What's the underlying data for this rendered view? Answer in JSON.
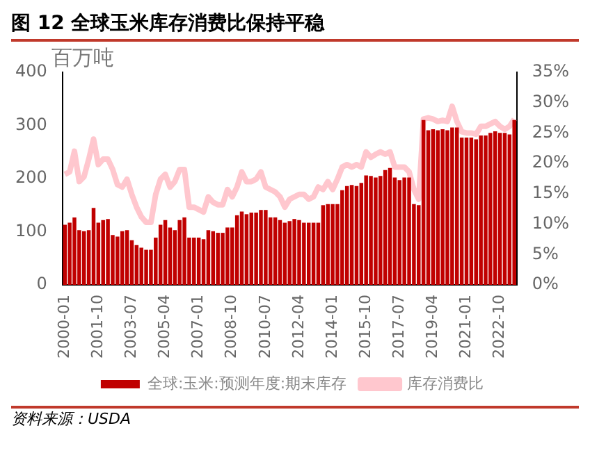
{
  "chart_data": {
    "type": "bar",
    "title": "图 12  全球玉米库存消费比保持平稳",
    "ylabel": "百万吨",
    "annotations": [
      "资料来源：USDA"
    ],
    "categories": [
      "2000-01",
      null,
      null,
      null,
      null,
      null,
      null,
      "2001-10",
      null,
      null,
      null,
      null,
      null,
      null,
      "2003-07",
      null,
      null,
      null,
      null,
      null,
      null,
      "2005-04",
      null,
      null,
      null,
      null,
      null,
      null,
      "2007-01",
      null,
      null,
      null,
      null,
      null,
      null,
      "2008-10",
      null,
      null,
      null,
      null,
      null,
      null,
      "2010-07",
      null,
      null,
      null,
      null,
      null,
      null,
      "2012-04",
      null,
      null,
      null,
      null,
      null,
      null,
      "2014-01",
      null,
      null,
      null,
      null,
      null,
      null,
      "2015-10",
      null,
      null,
      null,
      null,
      null,
      null,
      "2017-07",
      null,
      null,
      null,
      null,
      null,
      null,
      "2019-04",
      null,
      null,
      null,
      null,
      null,
      null,
      "2021-01",
      null,
      null,
      null,
      null,
      null,
      null,
      "2022-10",
      null,
      null,
      null
    ],
    "series": [
      {
        "name": "全球:玉米:预测年度:期末库存",
        "color": "#c00000",
        "values": [
          113,
          117,
          127,
          103,
          101,
          103,
          145,
          117,
          122,
          124,
          94,
          91,
          101,
          103,
          84,
          75,
          70,
          66,
          66,
          89,
          113,
          122,
          108,
          103,
          122,
          127,
          89,
          89,
          89,
          86,
          103,
          101,
          98,
          98,
          108,
          108,
          131,
          138,
          133,
          136,
          136,
          141,
          141,
          127,
          127,
          122,
          117,
          120,
          124,
          122,
          117,
          117,
          117,
          117,
          150,
          152,
          152,
          152,
          178,
          186,
          188,
          186,
          192,
          206,
          205,
          202,
          205,
          216,
          220,
          202,
          197,
          202,
          202,
          152,
          150,
          310,
          291,
          293,
          291,
          293,
          291,
          296,
          296,
          277,
          277,
          277,
          274,
          281,
          281,
          286,
          289,
          286,
          286,
          283,
          310
        ]
      },
      {
        "name": "库存消费比",
        "color": "#ffc7ce",
        "type": "line",
        "axis": "y2",
        "values": [
          18.2,
          18.6,
          22,
          17,
          17.8,
          20.7,
          24,
          19.8,
          20.7,
          20.7,
          19,
          16.5,
          16.1,
          17.4,
          14.9,
          12.8,
          11.2,
          10.3,
          10.3,
          14.9,
          17.4,
          18.2,
          16.1,
          17,
          19,
          19,
          12.8,
          12.8,
          12.4,
          12,
          14.5,
          13.6,
          13.2,
          13.2,
          15.7,
          14.5,
          16.1,
          18.6,
          17,
          17,
          17.4,
          18.6,
          16.1,
          15.7,
          15.3,
          14.5,
          12.8,
          14.1,
          14.5,
          14.9,
          14.9,
          14.1,
          14.5,
          16.1,
          15.7,
          17,
          15.7,
          17.4,
          19.4,
          19.8,
          19.4,
          19.8,
          19.4,
          21.9,
          21,
          21.5,
          21.9,
          21.5,
          21.9,
          19.4,
          19.4,
          19.4,
          18.6,
          15.7,
          14.1,
          27.3,
          27.5,
          27.3,
          26.9,
          27.1,
          26.9,
          29.4,
          26.9,
          25.2,
          25,
          25,
          24.8,
          26.1,
          26.1,
          26.5,
          26.9,
          26.1,
          25.6,
          26.1,
          27.3
        ]
      }
    ],
    "ylim": [
      0,
      400
    ],
    "yticks": [
      0,
      100,
      200,
      300,
      400
    ],
    "y2lim": [
      0,
      35
    ],
    "y2ticks": [
      {
        "value": 0,
        "label": "0%"
      },
      {
        "value": 5,
        "label": "5%"
      },
      {
        "value": 10,
        "label": "10%"
      },
      {
        "value": 15,
        "label": "15%"
      },
      {
        "value": 20,
        "label": "20%"
      },
      {
        "value": 25,
        "label": "25%"
      },
      {
        "value": 30,
        "label": "30%"
      },
      {
        "value": 35,
        "label": "35%"
      }
    ],
    "grid": false,
    "legend": "bottom",
    "marker": "none",
    "line_style": "solid"
  }
}
